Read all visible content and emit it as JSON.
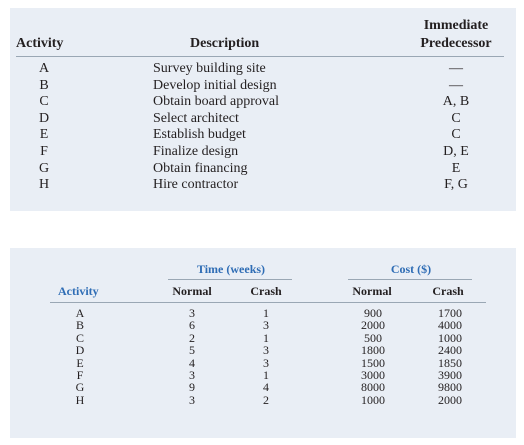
{
  "table1": {
    "headers": {
      "activity": "Activity",
      "description": "Description",
      "predecessor_line1": "Immediate",
      "predecessor_line2": "Predecessor"
    },
    "rows": [
      {
        "activity": "A",
        "description": "Survey building site",
        "predecessor": "—"
      },
      {
        "activity": "B",
        "description": "Develop initial design",
        "predecessor": "—"
      },
      {
        "activity": "C",
        "description": "Obtain board approval",
        "predecessor": "A, B"
      },
      {
        "activity": "D",
        "description": "Select architect",
        "predecessor": "C"
      },
      {
        "activity": "E",
        "description": "Establish budget",
        "predecessor": "C"
      },
      {
        "activity": "F",
        "description": "Finalize design",
        "predecessor": "D, E"
      },
      {
        "activity": "G",
        "description": "Obtain financing",
        "predecessor": "E"
      },
      {
        "activity": "H",
        "description": "Hire contractor",
        "predecessor": "F, G"
      }
    ]
  },
  "table2": {
    "group_headers": {
      "time": "Time (weeks)",
      "cost": "Cost ($)"
    },
    "headers": {
      "activity": "Activity",
      "time_normal": "Normal",
      "time_crash": "Crash",
      "cost_normal": "Normal",
      "cost_crash": "Crash"
    },
    "rows": [
      {
        "activity": "A",
        "time_normal": "3",
        "time_crash": "1",
        "cost_normal": "900",
        "cost_crash": "1700"
      },
      {
        "activity": "B",
        "time_normal": "6",
        "time_crash": "3",
        "cost_normal": "2000",
        "cost_crash": "4000"
      },
      {
        "activity": "C",
        "time_normal": "2",
        "time_crash": "1",
        "cost_normal": "500",
        "cost_crash": "1000"
      },
      {
        "activity": "D",
        "time_normal": "5",
        "time_crash": "3",
        "cost_normal": "1800",
        "cost_crash": "2400"
      },
      {
        "activity": "E",
        "time_normal": "4",
        "time_crash": "3",
        "cost_normal": "1500",
        "cost_crash": "1850"
      },
      {
        "activity": "F",
        "time_normal": "3",
        "time_crash": "1",
        "cost_normal": "3000",
        "cost_crash": "3900"
      },
      {
        "activity": "G",
        "time_normal": "9",
        "time_crash": "4",
        "cost_normal": "8000",
        "cost_crash": "9800"
      },
      {
        "activity": "H",
        "time_normal": "3",
        "time_crash": "2",
        "cost_normal": "1000",
        "cost_crash": "2000"
      }
    ]
  },
  "colors": {
    "panel_background": "#e9eef5",
    "header_blue": "#2f6db5",
    "text": "#231f20"
  }
}
